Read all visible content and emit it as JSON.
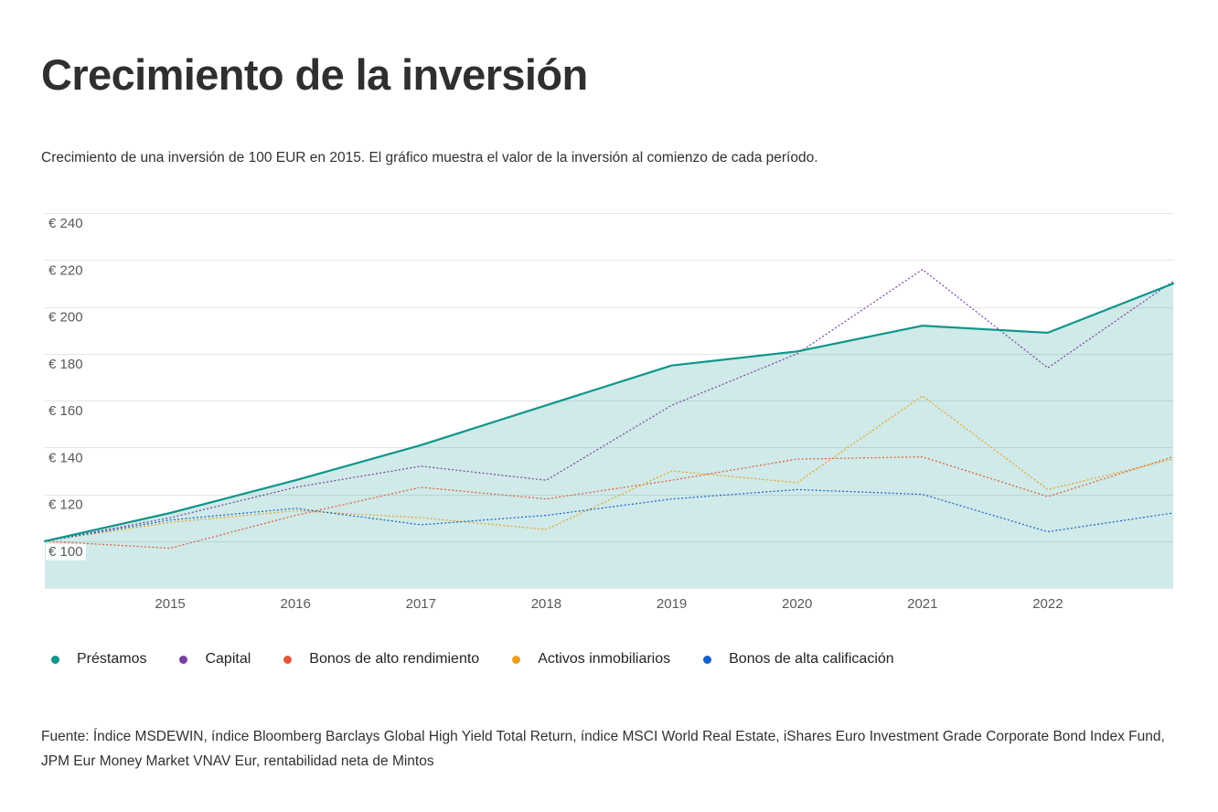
{
  "title": "Crecimiento de la inversión",
  "subtitle": "Crecimiento de una inversión de 100 EUR en 2015. El gráfico muestra el valor de la inversión al comienzo de cada período.",
  "source": "Fuente: Índice MSDEWIN, índice Bloomberg Barclays Global High Yield Total Return, índice MSCI World Real Estate, iShares Euro Investment Grade Corporate Bond Index Fund, JPM Eur Money Market VNAV Eur, rentabilidad neta de Mintos",
  "chart_data": {
    "type": "line",
    "title": "Crecimiento de la inversión",
    "xlabel": "",
    "ylabel": "",
    "x": [
      2014.0,
      2015.0,
      2016.0,
      2017.0,
      2018.0,
      2019.0,
      2020.0,
      2021.0,
      2022.0,
      2023.0
    ],
    "x_ticks": [
      2015,
      2016,
      2017,
      2018,
      2019,
      2020,
      2021,
      2022
    ],
    "x_tick_labels": [
      "2015",
      "2016",
      "2017",
      "2018",
      "2019",
      "2020",
      "2021",
      "2022"
    ],
    "xlim": [
      2014.0,
      2023.0
    ],
    "y_ticks": [
      100,
      120,
      140,
      160,
      180,
      200,
      220,
      240
    ],
    "y_tick_labels": [
      "€ 100",
      "€ 120",
      "€ 140",
      "€ 160",
      "€ 180",
      "€ 200",
      "€ 220",
      "€ 240"
    ],
    "ylim": [
      80,
      244
    ],
    "grid": true,
    "legend_position": "bottom-left",
    "series": [
      {
        "name": "Préstamos",
        "color": "#0f958b",
        "style": "area",
        "values": [
          100,
          112,
          126,
          141,
          158,
          175,
          181,
          192,
          189,
          210
        ]
      },
      {
        "name": "Capital",
        "color": "#7a3fa0",
        "style": "dotted",
        "values": [
          100,
          110,
          123,
          132,
          126,
          158,
          180,
          216,
          174,
          211
        ]
      },
      {
        "name": "Bonos de alto rendimiento",
        "color": "#e05a3a",
        "style": "dotted",
        "values": [
          100,
          97,
          111,
          123,
          118,
          126,
          135,
          136,
          119,
          136
        ]
      },
      {
        "name": "Activos inmobiliarios",
        "color": "#eba120",
        "style": "dotted",
        "values": [
          100,
          108,
          113,
          110,
          105,
          130,
          125,
          162,
          122,
          135
        ]
      },
      {
        "name": "Bonos de alta calificación",
        "color": "#1462c8",
        "style": "dotted",
        "values": [
          100,
          109,
          114,
          107,
          111,
          118,
          122,
          120,
          104,
          112
        ]
      }
    ]
  }
}
